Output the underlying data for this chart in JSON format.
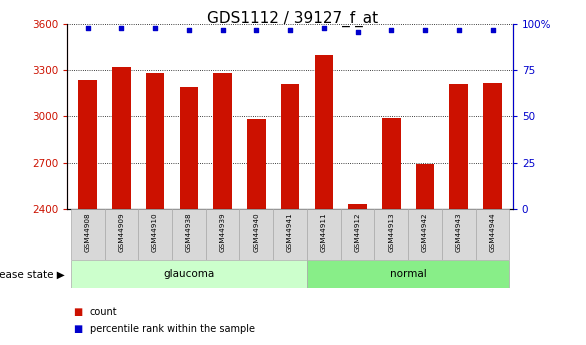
{
  "title": "GDS1112 / 39127_f_at",
  "samples": [
    "GSM44908",
    "GSM44909",
    "GSM44910",
    "GSM44938",
    "GSM44939",
    "GSM44940",
    "GSM44941",
    "GSM44911",
    "GSM44912",
    "GSM44913",
    "GSM44942",
    "GSM44943",
    "GSM44944"
  ],
  "counts": [
    3240,
    3320,
    3280,
    3190,
    3285,
    2985,
    3210,
    3400,
    2430,
    2990,
    2690,
    3210,
    3220
  ],
  "percentiles": [
    98,
    98,
    98,
    97,
    97,
    97,
    97,
    98,
    96,
    97,
    97,
    97,
    97
  ],
  "groups": [
    "glaucoma",
    "glaucoma",
    "glaucoma",
    "glaucoma",
    "glaucoma",
    "glaucoma",
    "glaucoma",
    "normal",
    "normal",
    "normal",
    "normal",
    "normal",
    "normal"
  ],
  "glaucoma_color": "#ccffcc",
  "normal_color": "#88ee88",
  "bar_color": "#cc1100",
  "dot_color": "#0000cc",
  "ylim_left": [
    2400,
    3600
  ],
  "ylim_right": [
    0,
    100
  ],
  "yticks_left": [
    2400,
    2700,
    3000,
    3300,
    3600
  ],
  "yticks_right": [
    0,
    25,
    50,
    75,
    100
  ],
  "right_tick_labels": [
    "0",
    "25",
    "50",
    "75",
    "100%"
  ],
  "title_fontsize": 11,
  "label_fontsize": 7,
  "tick_fontsize": 7.5,
  "ax_label_color_left": "#cc1100",
  "ax_label_color_right": "#0000cc",
  "cell_color": "#d8d8d8",
  "n_glaucoma": 7
}
